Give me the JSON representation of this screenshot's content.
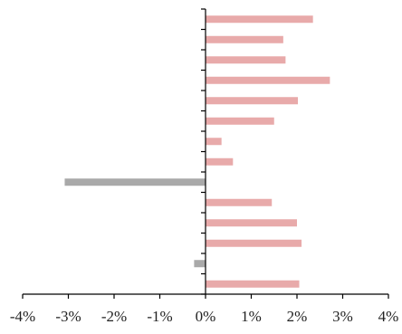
{
  "chart_data": {
    "type": "bar",
    "orientation": "horizontal",
    "title": "",
    "xlabel": "",
    "ylabel": "",
    "xlim": [
      -4,
      4
    ],
    "x_ticks": [
      {
        "value": -4,
        "label": "-4%"
      },
      {
        "value": -3,
        "label": "-3%"
      },
      {
        "value": -2,
        "label": "-2%"
      },
      {
        "value": -1,
        "label": "-1%"
      },
      {
        "value": 0,
        "label": "0%"
      },
      {
        "value": 1,
        "label": "1%"
      },
      {
        "value": 2,
        "label": "2%"
      },
      {
        "value": 3,
        "label": "3%"
      },
      {
        "value": 4,
        "label": "4%"
      }
    ],
    "category_count": 14,
    "values": [
      2.35,
      1.7,
      1.75,
      2.72,
      2.02,
      1.5,
      0.35,
      0.6,
      -3.08,
      1.45,
      2.0,
      2.1,
      -0.25,
      2.05
    ],
    "grid": false,
    "legend": "none",
    "colors": {
      "positive": "#e8aaaa",
      "negative": "#a9a9a9",
      "axis": "#000000"
    }
  }
}
